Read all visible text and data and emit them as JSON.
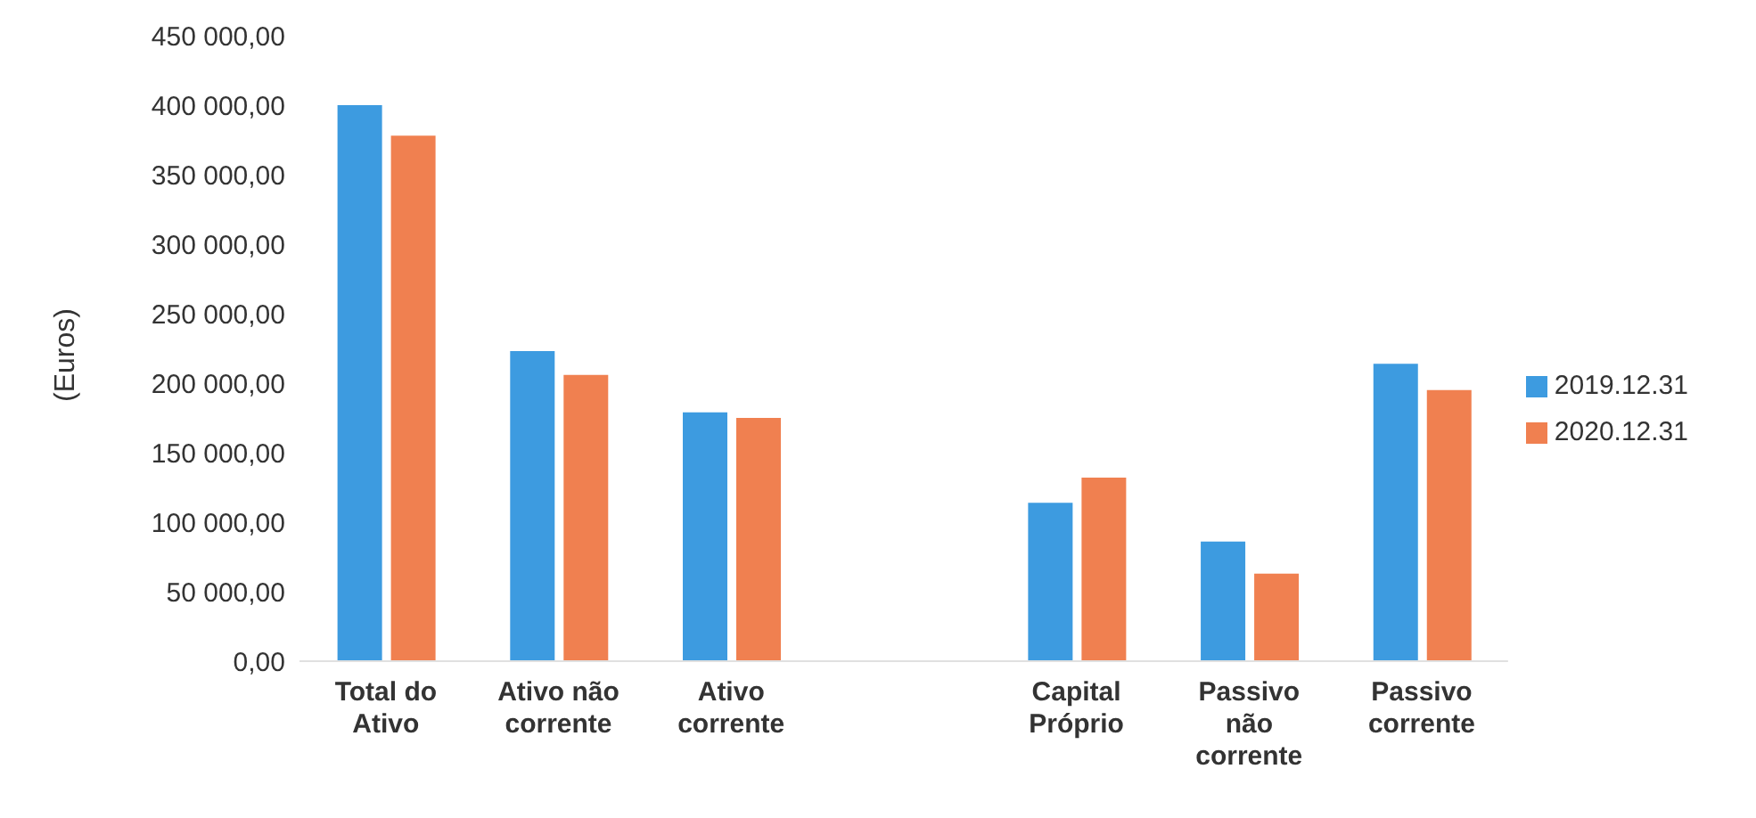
{
  "chart_data": {
    "type": "bar",
    "ylabel": "(Euros)",
    "categories": [
      "Total do Ativo",
      "Ativo não corrente",
      "Ativo corrente",
      null,
      "Capital Próprio",
      "Passivo não corrente",
      "Passivo corrente"
    ],
    "series": [
      {
        "name": "2019.12.31",
        "color": "#3d9be0",
        "values": [
          400000,
          223000,
          179000,
          null,
          114000,
          86000,
          214000
        ]
      },
      {
        "name": "2020.12.31",
        "color": "#f08050",
        "values": [
          378000,
          206000,
          175000,
          null,
          132000,
          63000,
          195000
        ]
      }
    ],
    "ylim": [
      0,
      450000
    ],
    "yticks": [
      {
        "value": 0,
        "label": "0,00"
      },
      {
        "value": 50000,
        "label": "50 000,00"
      },
      {
        "value": 100000,
        "label": "100 000,00"
      },
      {
        "value": 150000,
        "label": "150 000,00"
      },
      {
        "value": 200000,
        "label": "200 000,00"
      },
      {
        "value": 250000,
        "label": "250 000,00"
      },
      {
        "value": 300000,
        "label": "300 000,00"
      },
      {
        "value": 350000,
        "label": "350 000,00"
      },
      {
        "value": 400000,
        "label": "400 000,00"
      },
      {
        "value": 450000,
        "label": "450 000,00"
      }
    ],
    "grid": false,
    "legend": "right"
  }
}
